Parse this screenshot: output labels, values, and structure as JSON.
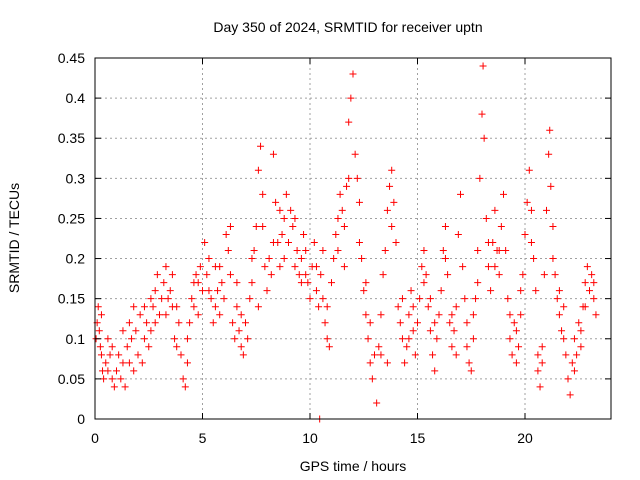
{
  "chart_data": {
    "type": "scatter",
    "title": "Day 350 of 2024, SRMTID for receiver uptn",
    "xlabel": "GPS time / hours",
    "ylabel": "SRMTID / TECUs",
    "xlim": [
      0,
      24
    ],
    "ylim": [
      0,
      0.45
    ],
    "xticks": [
      0,
      5,
      10,
      15,
      20
    ],
    "xtick_labels": [
      "0",
      "5",
      "10",
      "15",
      "20"
    ],
    "yticks": [
      0,
      0.05,
      0.1,
      0.15,
      0.2,
      0.25,
      0.3,
      0.35,
      0.4,
      0.45
    ],
    "ytick_labels": [
      "0",
      "0.05",
      "0.1",
      "0.15",
      "0.2",
      "0.25",
      "0.3",
      "0.35",
      "0.4",
      "0.45"
    ],
    "grid": true,
    "marker": "plus",
    "color": "#ff0000",
    "series": [
      {
        "name": "SRMTID",
        "points": [
          [
            0.05,
            0.1
          ],
          [
            0.1,
            0.12
          ],
          [
            0.15,
            0.14
          ],
          [
            0.2,
            0.11
          ],
          [
            0.25,
            0.09
          ],
          [
            0.3,
            0.13
          ],
          [
            0.35,
            0.06
          ],
          [
            0.4,
            0.05
          ],
          [
            0.5,
            0.07
          ],
          [
            0.6,
            0.06
          ],
          [
            0.7,
            0.08
          ],
          [
            0.8,
            0.05
          ],
          [
            0.9,
            0.04
          ],
          [
            1.0,
            0.06
          ],
          [
            1.1,
            0.08
          ],
          [
            1.2,
            0.05
          ],
          [
            1.3,
            0.07
          ],
          [
            1.4,
            0.04
          ],
          [
            1.5,
            0.09
          ],
          [
            1.6,
            0.12
          ],
          [
            1.7,
            0.1
          ],
          [
            1.8,
            0.14
          ],
          [
            1.9,
            0.11
          ],
          [
            2.0,
            0.08
          ],
          [
            2.1,
            0.13
          ],
          [
            2.2,
            0.07
          ],
          [
            2.3,
            0.1
          ],
          [
            2.4,
            0.12
          ],
          [
            2.5,
            0.09
          ],
          [
            2.6,
            0.15
          ],
          [
            2.7,
            0.14
          ],
          [
            2.8,
            0.16
          ],
          [
            2.9,
            0.18
          ],
          [
            3.0,
            0.13
          ],
          [
            3.1,
            0.15
          ],
          [
            3.2,
            0.17
          ],
          [
            3.3,
            0.19
          ],
          [
            3.4,
            0.15
          ],
          [
            3.5,
            0.16
          ],
          [
            3.6,
            0.14
          ],
          [
            3.7,
            0.1
          ],
          [
            3.8,
            0.09
          ],
          [
            3.9,
            0.12
          ],
          [
            4.0,
            0.08
          ],
          [
            4.1,
            0.05
          ],
          [
            4.2,
            0.04
          ],
          [
            4.3,
            0.07
          ],
          [
            4.4,
            0.12
          ],
          [
            4.5,
            0.15
          ],
          [
            4.6,
            0.14
          ],
          [
            4.7,
            0.18
          ],
          [
            4.8,
            0.17
          ],
          [
            4.9,
            0.19
          ],
          [
            5.0,
            0.16
          ],
          [
            5.1,
            0.22
          ],
          [
            5.2,
            0.18
          ],
          [
            5.3,
            0.2
          ],
          [
            5.4,
            0.15
          ],
          [
            5.5,
            0.12
          ],
          [
            5.6,
            0.14
          ],
          [
            5.7,
            0.16
          ],
          [
            5.8,
            0.13
          ],
          [
            5.9,
            0.17
          ],
          [
            6.0,
            0.15
          ],
          [
            6.1,
            0.23
          ],
          [
            6.2,
            0.21
          ],
          [
            6.3,
            0.18
          ],
          [
            6.4,
            0.12
          ],
          [
            6.5,
            0.1
          ],
          [
            6.6,
            0.14
          ],
          [
            6.7,
            0.11
          ],
          [
            6.8,
            0.09
          ],
          [
            6.9,
            0.08
          ],
          [
            7.0,
            0.12
          ],
          [
            7.1,
            0.1
          ],
          [
            7.2,
            0.15
          ],
          [
            7.3,
            0.17
          ],
          [
            7.4,
            0.21
          ],
          [
            7.5,
            0.24
          ],
          [
            7.6,
            0.31
          ],
          [
            7.7,
            0.34
          ],
          [
            7.8,
            0.28
          ],
          [
            7.9,
            0.19
          ],
          [
            8.0,
            0.16
          ],
          [
            8.1,
            0.2
          ],
          [
            8.2,
            0.18
          ],
          [
            8.3,
            0.33
          ],
          [
            8.4,
            0.27
          ],
          [
            8.5,
            0.22
          ],
          [
            8.6,
            0.19
          ],
          [
            8.7,
            0.23
          ],
          [
            8.8,
            0.25
          ],
          [
            8.9,
            0.28
          ],
          [
            9.0,
            0.22
          ],
          [
            9.1,
            0.26
          ],
          [
            9.2,
            0.24
          ],
          [
            9.3,
            0.19
          ],
          [
            9.4,
            0.21
          ],
          [
            9.5,
            0.18
          ],
          [
            9.6,
            0.2
          ],
          [
            9.7,
            0.23
          ],
          [
            9.8,
            0.21
          ],
          [
            9.9,
            0.17
          ],
          [
            10.0,
            0.15
          ],
          [
            10.1,
            0.19
          ],
          [
            10.2,
            0.22
          ],
          [
            10.3,
            0.16
          ],
          [
            10.4,
            0.14
          ],
          [
            10.45,
            0.0
          ],
          [
            10.5,
            0.18
          ],
          [
            10.6,
            0.15
          ],
          [
            10.7,
            0.12
          ],
          [
            10.8,
            0.1
          ],
          [
            10.9,
            0.09
          ],
          [
            11.0,
            0.17
          ],
          [
            11.1,
            0.2
          ],
          [
            11.2,
            0.23
          ],
          [
            11.3,
            0.25
          ],
          [
            11.4,
            0.28
          ],
          [
            11.5,
            0.26
          ],
          [
            11.6,
            0.24
          ],
          [
            11.7,
            0.29
          ],
          [
            11.8,
            0.37
          ],
          [
            11.9,
            0.4
          ],
          [
            12.0,
            0.43
          ],
          [
            12.1,
            0.33
          ],
          [
            12.2,
            0.3
          ],
          [
            12.3,
            0.27
          ],
          [
            12.4,
            0.2
          ],
          [
            12.5,
            0.16
          ],
          [
            12.6,
            0.13
          ],
          [
            12.7,
            0.1
          ],
          [
            12.8,
            0.07
          ],
          [
            12.9,
            0.05
          ],
          [
            13.0,
            0.08
          ],
          [
            13.1,
            0.02
          ],
          [
            13.2,
            0.09
          ],
          [
            13.3,
            0.13
          ],
          [
            13.4,
            0.18
          ],
          [
            13.5,
            0.21
          ],
          [
            13.6,
            0.26
          ],
          [
            13.7,
            0.29
          ],
          [
            13.8,
            0.31
          ],
          [
            13.9,
            0.27
          ],
          [
            14.0,
            0.22
          ],
          [
            14.1,
            0.14
          ],
          [
            14.2,
            0.12
          ],
          [
            14.3,
            0.1
          ],
          [
            14.4,
            0.07
          ],
          [
            14.5,
            0.09
          ],
          [
            14.6,
            0.13
          ],
          [
            14.7,
            0.16
          ],
          [
            14.8,
            0.11
          ],
          [
            14.9,
            0.08
          ],
          [
            15.0,
            0.12
          ],
          [
            15.1,
            0.15
          ],
          [
            15.2,
            0.19
          ],
          [
            15.3,
            0.21
          ],
          [
            15.4,
            0.18
          ],
          [
            15.5,
            0.14
          ],
          [
            15.6,
            0.11
          ],
          [
            15.7,
            0.08
          ],
          [
            15.8,
            0.06
          ],
          [
            15.9,
            0.1
          ],
          [
            16.0,
            0.13
          ],
          [
            16.1,
            0.16
          ],
          [
            16.2,
            0.21
          ],
          [
            16.3,
            0.24
          ],
          [
            16.4,
            0.18
          ],
          [
            16.5,
            0.12
          ],
          [
            16.6,
            0.09
          ],
          [
            16.7,
            0.11
          ],
          [
            16.8,
            0.14
          ],
          [
            16.9,
            0.23
          ],
          [
            17.0,
            0.28
          ],
          [
            17.1,
            0.19
          ],
          [
            17.2,
            0.15
          ],
          [
            17.3,
            0.09
          ],
          [
            17.4,
            0.07
          ],
          [
            17.5,
            0.06
          ],
          [
            17.6,
            0.1
          ],
          [
            17.7,
            0.15
          ],
          [
            17.8,
            0.21
          ],
          [
            17.9,
            0.3
          ],
          [
            18.0,
            0.38
          ],
          [
            18.05,
            0.44
          ],
          [
            18.1,
            0.35
          ],
          [
            18.2,
            0.25
          ],
          [
            18.3,
            0.19
          ],
          [
            18.4,
            0.16
          ],
          [
            18.5,
            0.22
          ],
          [
            18.6,
            0.26
          ],
          [
            18.7,
            0.21
          ],
          [
            18.8,
            0.18
          ],
          [
            18.9,
            0.24
          ],
          [
            19.0,
            0.28
          ],
          [
            19.1,
            0.21
          ],
          [
            19.2,
            0.15
          ],
          [
            19.3,
            0.1
          ],
          [
            19.4,
            0.08
          ],
          [
            19.5,
            0.12
          ],
          [
            19.6,
            0.07
          ],
          [
            19.7,
            0.09
          ],
          [
            19.8,
            0.13
          ],
          [
            19.9,
            0.18
          ],
          [
            20.0,
            0.23
          ],
          [
            20.1,
            0.27
          ],
          [
            20.2,
            0.31
          ],
          [
            20.3,
            0.26
          ],
          [
            20.4,
            0.2
          ],
          [
            20.5,
            0.16
          ],
          [
            20.6,
            0.06
          ],
          [
            20.7,
            0.04
          ],
          [
            20.8,
            0.09
          ],
          [
            20.9,
            0.18
          ],
          [
            21.0,
            0.26
          ],
          [
            21.1,
            0.33
          ],
          [
            21.15,
            0.36
          ],
          [
            21.2,
            0.29
          ],
          [
            21.3,
            0.24
          ],
          [
            21.4,
            0.18
          ],
          [
            21.5,
            0.15
          ],
          [
            21.6,
            0.13
          ],
          [
            21.7,
            0.11
          ],
          [
            21.8,
            0.14
          ],
          [
            21.9,
            0.08
          ],
          [
            22.0,
            0.05
          ],
          [
            22.1,
            0.03
          ],
          [
            22.2,
            0.07
          ],
          [
            22.3,
            0.1
          ],
          [
            22.4,
            0.08
          ],
          [
            22.5,
            0.12
          ],
          [
            22.6,
            0.09
          ],
          [
            22.7,
            0.14
          ],
          [
            22.8,
            0.17
          ],
          [
            22.9,
            0.19
          ],
          [
            23.0,
            0.16
          ],
          [
            23.1,
            0.18
          ],
          [
            23.2,
            0.15
          ],
          [
            23.3,
            0.13
          ],
          [
            0.3,
            0.08
          ],
          [
            0.8,
            0.09
          ],
          [
            1.3,
            0.11
          ],
          [
            1.8,
            0.06
          ],
          [
            2.3,
            0.14
          ],
          [
            2.8,
            0.12
          ],
          [
            3.3,
            0.13
          ],
          [
            3.8,
            0.14
          ],
          [
            4.3,
            0.1
          ],
          [
            4.8,
            0.13
          ],
          [
            5.3,
            0.16
          ],
          [
            5.8,
            0.19
          ],
          [
            6.3,
            0.24
          ],
          [
            6.8,
            0.13
          ],
          [
            7.3,
            0.2
          ],
          [
            7.8,
            0.24
          ],
          [
            8.3,
            0.22
          ],
          [
            8.8,
            0.2
          ],
          [
            9.3,
            0.25
          ],
          [
            9.8,
            0.18
          ],
          [
            10.3,
            0.19
          ],
          [
            10.8,
            0.14
          ],
          [
            11.3,
            0.21
          ],
          [
            11.8,
            0.3
          ],
          [
            12.3,
            0.22
          ],
          [
            12.8,
            0.12
          ],
          [
            13.3,
            0.08
          ],
          [
            13.8,
            0.24
          ],
          [
            14.3,
            0.15
          ],
          [
            14.8,
            0.14
          ],
          [
            15.3,
            0.17
          ],
          [
            15.8,
            0.12
          ],
          [
            16.3,
            0.2
          ],
          [
            16.8,
            0.08
          ],
          [
            17.3,
            0.12
          ],
          [
            17.8,
            0.17
          ],
          [
            18.3,
            0.22
          ],
          [
            18.8,
            0.21
          ],
          [
            19.3,
            0.13
          ],
          [
            19.8,
            0.16
          ],
          [
            20.3,
            0.22
          ],
          [
            20.8,
            0.07
          ],
          [
            21.3,
            0.2
          ],
          [
            21.8,
            0.1
          ],
          [
            22.3,
            0.06
          ],
          [
            22.8,
            0.14
          ],
          [
            23.2,
            0.17
          ],
          [
            0.6,
            0.1
          ],
          [
            1.6,
            0.07
          ],
          [
            2.6,
            0.11
          ],
          [
            3.6,
            0.18
          ],
          [
            4.6,
            0.17
          ],
          [
            5.6,
            0.19
          ],
          [
            6.6,
            0.17
          ],
          [
            7.6,
            0.14
          ],
          [
            8.6,
            0.26
          ],
          [
            9.6,
            0.17
          ],
          [
            10.6,
            0.21
          ],
          [
            11.6,
            0.19
          ],
          [
            12.6,
            0.17
          ],
          [
            13.6,
            0.07
          ],
          [
            14.6,
            0.1
          ],
          [
            15.6,
            0.15
          ],
          [
            16.6,
            0.13
          ],
          [
            17.6,
            0.13
          ],
          [
            18.6,
            0.19
          ],
          [
            19.6,
            0.11
          ],
          [
            20.6,
            0.08
          ],
          [
            21.6,
            0.16
          ],
          [
            22.6,
            0.11
          ]
        ]
      }
    ]
  }
}
